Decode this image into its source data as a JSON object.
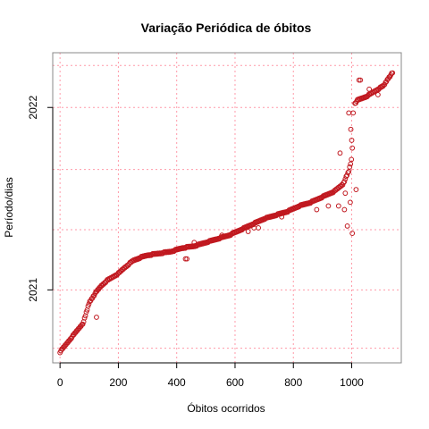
{
  "chart_data": {
    "type": "scatter",
    "title": "Variação Periódica de óbitos",
    "xlabel": "Óbitos ocorridos",
    "ylabel": "Período/dias",
    "xlim": [
      -25,
      1170
    ],
    "ylim": [
      2020.6,
      2022.3
    ],
    "x_ticks": [
      0,
      200,
      400,
      600,
      800,
      1000
    ],
    "x_tick_labels": [
      "0",
      "200",
      "400",
      "600",
      "800",
      "1000"
    ],
    "y_ticks": [
      2021,
      2022
    ],
    "y_tick_labels": [
      "2021",
      "2022"
    ],
    "grid": true,
    "grid_x": [
      0,
      200,
      400,
      600,
      800,
      1000
    ],
    "grid_y": [
      2020.68,
      2021.0,
      2021.33,
      2021.66,
      2022.0,
      2022.23
    ],
    "point_color": "#c0181f",
    "grid_color": "#ff9aa8",
    "curve": [
      [
        0,
        2020.66
      ],
      [
        10,
        2020.68
      ],
      [
        25,
        2020.71
      ],
      [
        40,
        2020.74
      ],
      [
        60,
        2020.78
      ],
      [
        80,
        2020.82
      ],
      [
        100,
        2020.93
      ],
      [
        120,
        2020.98
      ],
      [
        140,
        2021.02
      ],
      [
        160,
        2021.05
      ],
      [
        180,
        2021.07
      ],
      [
        200,
        2021.09
      ],
      [
        220,
        2021.12
      ],
      [
        250,
        2021.16
      ],
      [
        280,
        2021.18
      ],
      [
        300,
        2021.19
      ],
      [
        340,
        2021.2
      ],
      [
        380,
        2021.21
      ],
      [
        420,
        2021.23
      ],
      [
        460,
        2021.24
      ],
      [
        500,
        2021.26
      ],
      [
        540,
        2021.28
      ],
      [
        580,
        2021.3
      ],
      [
        620,
        2021.33
      ],
      [
        660,
        2021.36
      ],
      [
        700,
        2021.39
      ],
      [
        740,
        2021.41
      ],
      [
        780,
        2021.43
      ],
      [
        820,
        2021.46
      ],
      [
        860,
        2021.48
      ],
      [
        900,
        2021.51
      ],
      [
        940,
        2021.54
      ],
      [
        970,
        2021.58
      ],
      [
        990,
        2021.65
      ],
      [
        1000,
        2021.72
      ],
      [
        1010,
        2022.02
      ],
      [
        1020,
        2022.04
      ],
      [
        1050,
        2022.06
      ],
      [
        1080,
        2022.09
      ],
      [
        1110,
        2022.12
      ],
      [
        1125,
        2022.16
      ],
      [
        1140,
        2022.19
      ]
    ],
    "outliers": [
      [
        125,
        2020.85
      ],
      [
        430,
        2021.17
      ],
      [
        435,
        2021.17
      ],
      [
        460,
        2021.26
      ],
      [
        555,
        2021.3
      ],
      [
        645,
        2021.32
      ],
      [
        665,
        2021.34
      ],
      [
        680,
        2021.34
      ],
      [
        760,
        2021.4
      ],
      [
        880,
        2021.44
      ],
      [
        920,
        2021.46
      ],
      [
        960,
        2021.75
      ],
      [
        955,
        2021.46
      ],
      [
        975,
        2021.44
      ],
      [
        978,
        2021.53
      ],
      [
        985,
        2021.35
      ],
      [
        995,
        2021.48
      ],
      [
        997,
        2021.88
      ],
      [
        1000,
        2021.82
      ],
      [
        1002,
        2021.31
      ],
      [
        990,
        2021.97
      ],
      [
        1005,
        2021.97
      ],
      [
        1015,
        2021.55
      ],
      [
        1025,
        2022.15
      ],
      [
        1030,
        2022.15
      ],
      [
        1060,
        2022.1
      ],
      [
        1090,
        2022.07
      ]
    ]
  }
}
